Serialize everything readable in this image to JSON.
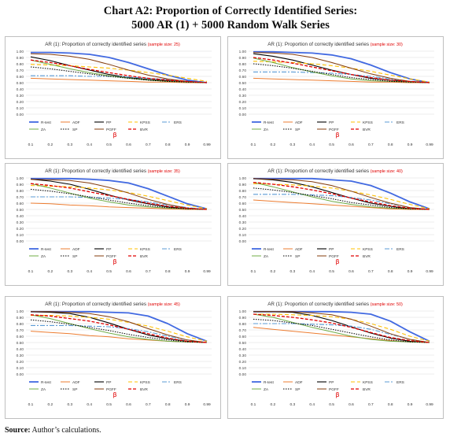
{
  "title_line1": "Chart A2: Proportion of Correctly Identified Series:",
  "title_line2": "5000 AR (1) + 5000 Random Walk Series",
  "source_label": "Source:",
  "source_text": "Author’s calculations.",
  "colors": {
    "R-test": "#4169e1",
    "ADF": "#ed7d31",
    "PP": "#000000",
    "KPSS": "#ffc000",
    "ERS": "#5b9bd5",
    "ZA": "#70ad47",
    "SP": "#000000",
    "PGFF": "#843c0c",
    "BVR": "#e00000",
    "sample_size_text": "#e00000",
    "beta_text": "#e00000"
  },
  "chart_data": [
    {
      "type": "line",
      "title": "AR (1): Proportion of correctly identified series",
      "sample_label": "(sample size: 25)",
      "xlabel": "β",
      "categories": [
        "0.1",
        "0.2",
        "0.3",
        "0.4",
        "0.5",
        "0.6",
        "0.7",
        "0.8",
        "0.9",
        "0.99"
      ],
      "yticks": [
        "0.00",
        "0.10",
        "0.20",
        "0.30",
        "0.40",
        "0.50",
        "0.60",
        "0.70",
        "0.80",
        "0.90",
        "1.00"
      ],
      "ylim": [
        0,
        1
      ],
      "legend": [
        "R-test",
        "ADF",
        "PP",
        "KPSS",
        "ERS",
        "ZA",
        "SP",
        "PGFF",
        "BVR"
      ],
      "series": [
        {
          "name": "R-test",
          "values": [
            0.98,
            0.98,
            0.97,
            0.95,
            0.9,
            0.82,
            0.72,
            0.62,
            0.54,
            0.5
          ]
        },
        {
          "name": "ADF",
          "values": [
            0.57,
            0.56,
            0.55,
            0.54,
            0.53,
            0.52,
            0.51,
            0.51,
            0.5,
            0.5
          ]
        },
        {
          "name": "PP",
          "values": [
            0.91,
            0.85,
            0.77,
            0.7,
            0.63,
            0.58,
            0.55,
            0.53,
            0.51,
            0.5
          ]
        },
        {
          "name": "KPSS",
          "values": [
            0.79,
            0.78,
            0.77,
            0.75,
            0.73,
            0.7,
            0.66,
            0.62,
            0.57,
            0.52
          ]
        },
        {
          "name": "ERS",
          "values": [
            0.61,
            0.61,
            0.61,
            0.6,
            0.6,
            0.59,
            0.57,
            0.55,
            0.52,
            0.5
          ]
        },
        {
          "name": "ZA",
          "values": [
            0.86,
            0.79,
            0.72,
            0.66,
            0.61,
            0.57,
            0.54,
            0.52,
            0.51,
            0.5
          ]
        },
        {
          "name": "SP",
          "values": [
            0.75,
            0.72,
            0.68,
            0.64,
            0.6,
            0.57,
            0.54,
            0.52,
            0.51,
            0.5
          ]
        },
        {
          "name": "PGFF",
          "values": [
            0.96,
            0.95,
            0.92,
            0.87,
            0.79,
            0.7,
            0.62,
            0.56,
            0.52,
            0.5
          ]
        },
        {
          "name": "BVR",
          "values": [
            0.86,
            0.82,
            0.77,
            0.71,
            0.66,
            0.61,
            0.57,
            0.54,
            0.52,
            0.5
          ]
        }
      ]
    },
    {
      "type": "line",
      "title": "AR (1): Proportion of correctly identified series",
      "sample_label": "(sample size: 30)",
      "xlabel": "β",
      "categories": [
        "0.1",
        "0.2",
        "0.3",
        "0.4",
        "0.5",
        "0.6",
        "0.7",
        "0.8",
        "0.9",
        "0.99"
      ],
      "yticks": [
        "0.00",
        "0.10",
        "0.20",
        "0.30",
        "0.40",
        "0.50",
        "0.60",
        "0.70",
        "0.80",
        "0.90",
        "1.00"
      ],
      "ylim": [
        0,
        1
      ],
      "legend": [
        "R-test",
        "ADF",
        "PP",
        "KPSS",
        "ERS",
        "ZA",
        "SP",
        "PGFF",
        "BVR"
      ],
      "series": [
        {
          "name": "R-test",
          "values": [
            0.99,
            0.99,
            0.98,
            0.97,
            0.94,
            0.88,
            0.78,
            0.66,
            0.56,
            0.5
          ]
        },
        {
          "name": "ADF",
          "values": [
            0.57,
            0.56,
            0.55,
            0.54,
            0.53,
            0.52,
            0.51,
            0.51,
            0.5,
            0.5
          ]
        },
        {
          "name": "PP",
          "values": [
            0.96,
            0.92,
            0.86,
            0.78,
            0.7,
            0.63,
            0.57,
            0.54,
            0.51,
            0.5
          ]
        },
        {
          "name": "KPSS",
          "values": [
            0.84,
            0.83,
            0.82,
            0.8,
            0.77,
            0.73,
            0.68,
            0.62,
            0.56,
            0.51
          ]
        },
        {
          "name": "ERS",
          "values": [
            0.67,
            0.67,
            0.67,
            0.66,
            0.65,
            0.63,
            0.6,
            0.56,
            0.52,
            0.5
          ]
        },
        {
          "name": "ZA",
          "values": [
            0.89,
            0.82,
            0.74,
            0.67,
            0.61,
            0.56,
            0.53,
            0.52,
            0.51,
            0.5
          ]
        },
        {
          "name": "SP",
          "values": [
            0.8,
            0.77,
            0.73,
            0.68,
            0.63,
            0.58,
            0.55,
            0.52,
            0.51,
            0.5
          ]
        },
        {
          "name": "PGFF",
          "values": [
            0.98,
            0.97,
            0.95,
            0.9,
            0.82,
            0.73,
            0.64,
            0.57,
            0.52,
            0.5
          ]
        },
        {
          "name": "BVR",
          "values": [
            0.9,
            0.86,
            0.81,
            0.75,
            0.69,
            0.63,
            0.58,
            0.54,
            0.52,
            0.5
          ]
        }
      ]
    },
    {
      "type": "line",
      "title": "AR (1): Proportion of correctly identified series",
      "sample_label": "(sample size: 35)",
      "xlabel": "β",
      "categories": [
        "0.1",
        "0.2",
        "0.3",
        "0.4",
        "0.5",
        "0.6",
        "0.7",
        "0.8",
        "0.9",
        "0.99"
      ],
      "yticks": [
        "0.00",
        "0.10",
        "0.20",
        "0.30",
        "0.40",
        "0.50",
        "0.60",
        "0.70",
        "0.80",
        "0.90",
        "1.00"
      ],
      "ylim": [
        0,
        1
      ],
      "legend": [
        "R-test",
        "ADF",
        "PP",
        "KPSS",
        "ERS",
        "ZA",
        "SP",
        "PGFF",
        "BVR"
      ],
      "series": [
        {
          "name": "R-test",
          "values": [
            0.99,
            0.99,
            0.99,
            0.98,
            0.96,
            0.92,
            0.83,
            0.71,
            0.59,
            0.51
          ]
        },
        {
          "name": "ADF",
          "values": [
            0.6,
            0.59,
            0.57,
            0.56,
            0.54,
            0.53,
            0.52,
            0.51,
            0.5,
            0.5
          ]
        },
        {
          "name": "PP",
          "values": [
            0.98,
            0.95,
            0.9,
            0.82,
            0.73,
            0.65,
            0.59,
            0.54,
            0.51,
            0.5
          ]
        },
        {
          "name": "KPSS",
          "values": [
            0.88,
            0.87,
            0.86,
            0.84,
            0.81,
            0.77,
            0.71,
            0.64,
            0.57,
            0.51
          ]
        },
        {
          "name": "ERS",
          "values": [
            0.7,
            0.7,
            0.7,
            0.69,
            0.68,
            0.66,
            0.62,
            0.57,
            0.53,
            0.5
          ]
        },
        {
          "name": "ZA",
          "values": [
            0.91,
            0.84,
            0.76,
            0.68,
            0.62,
            0.57,
            0.54,
            0.52,
            0.51,
            0.5
          ]
        },
        {
          "name": "SP",
          "values": [
            0.82,
            0.79,
            0.75,
            0.7,
            0.65,
            0.6,
            0.56,
            0.53,
            0.51,
            0.5
          ]
        },
        {
          "name": "PGFF",
          "values": [
            0.98,
            0.97,
            0.96,
            0.92,
            0.85,
            0.76,
            0.66,
            0.58,
            0.52,
            0.5
          ]
        },
        {
          "name": "BVR",
          "values": [
            0.91,
            0.88,
            0.84,
            0.78,
            0.72,
            0.66,
            0.6,
            0.55,
            0.52,
            0.5
          ]
        }
      ]
    },
    {
      "type": "line",
      "title": "AR (1): Proportion of correctly identified series",
      "sample_label": "(sample size: 40)",
      "xlabel": "β",
      "categories": [
        "0.1",
        "0.2",
        "0.3",
        "0.4",
        "0.5",
        "0.6",
        "0.7",
        "0.8",
        "0.9",
        "0.99"
      ],
      "yticks": [
        "0.00",
        "0.10",
        "0.20",
        "0.30",
        "0.40",
        "0.50",
        "0.60",
        "0.70",
        "0.80",
        "0.90",
        "1.00"
      ],
      "ylim": [
        0,
        1
      ],
      "legend": [
        "R-test",
        "ADF",
        "PP",
        "KPSS",
        "ERS",
        "ZA",
        "SP",
        "PGFF",
        "BVR"
      ],
      "series": [
        {
          "name": "R-test",
          "values": [
            0.99,
            0.99,
            0.99,
            0.99,
            0.97,
            0.95,
            0.88,
            0.76,
            0.62,
            0.51
          ]
        },
        {
          "name": "ADF",
          "values": [
            0.65,
            0.63,
            0.61,
            0.59,
            0.57,
            0.55,
            0.53,
            0.51,
            0.5,
            0.5
          ]
        },
        {
          "name": "PP",
          "values": [
            0.99,
            0.97,
            0.93,
            0.86,
            0.77,
            0.68,
            0.6,
            0.55,
            0.51,
            0.5
          ]
        },
        {
          "name": "KPSS",
          "values": [
            0.91,
            0.9,
            0.89,
            0.87,
            0.84,
            0.79,
            0.73,
            0.66,
            0.58,
            0.51
          ]
        },
        {
          "name": "ERS",
          "values": [
            0.74,
            0.74,
            0.74,
            0.73,
            0.72,
            0.69,
            0.65,
            0.59,
            0.53,
            0.5
          ]
        },
        {
          "name": "ZA",
          "values": [
            0.93,
            0.86,
            0.78,
            0.7,
            0.63,
            0.58,
            0.54,
            0.52,
            0.51,
            0.5
          ]
        },
        {
          "name": "SP",
          "values": [
            0.84,
            0.81,
            0.77,
            0.72,
            0.67,
            0.61,
            0.57,
            0.53,
            0.51,
            0.5
          ]
        },
        {
          "name": "PGFF",
          "values": [
            0.99,
            0.98,
            0.97,
            0.94,
            0.88,
            0.79,
            0.69,
            0.6,
            0.53,
            0.5
          ]
        },
        {
          "name": "BVR",
          "values": [
            0.93,
            0.9,
            0.86,
            0.81,
            0.75,
            0.68,
            0.62,
            0.56,
            0.52,
            0.5
          ]
        }
      ]
    },
    {
      "type": "line",
      "title": "AR (1): Proportion of correctly identified series",
      "sample_label": "(sample size: 45)",
      "xlabel": "β",
      "categories": [
        "0.1",
        "0.2",
        "0.3",
        "0.4",
        "0.5",
        "0.6",
        "0.7",
        "0.8",
        "0.9",
        "0.99"
      ],
      "yticks": [
        "0.00",
        "0.10",
        "0.20",
        "0.30",
        "0.40",
        "0.50",
        "0.60",
        "0.70",
        "0.80",
        "0.90",
        "1.00"
      ],
      "ylim": [
        0,
        1
      ],
      "legend": [
        "R-test",
        "ADF",
        "PP",
        "KPSS",
        "ERS",
        "ZA",
        "SP",
        "PGFF",
        "BVR"
      ],
      "series": [
        {
          "name": "R-test",
          "values": [
            0.99,
            0.99,
            0.99,
            0.99,
            0.98,
            0.97,
            0.92,
            0.8,
            0.64,
            0.52
          ]
        },
        {
          "name": "ADF",
          "values": [
            0.68,
            0.66,
            0.64,
            0.61,
            0.59,
            0.56,
            0.54,
            0.52,
            0.51,
            0.5
          ]
        },
        {
          "name": "PP",
          "values": [
            0.99,
            0.98,
            0.96,
            0.9,
            0.81,
            0.71,
            0.62,
            0.56,
            0.52,
            0.5
          ]
        },
        {
          "name": "KPSS",
          "values": [
            0.93,
            0.93,
            0.92,
            0.9,
            0.87,
            0.82,
            0.76,
            0.68,
            0.59,
            0.52
          ]
        },
        {
          "name": "ERS",
          "values": [
            0.77,
            0.77,
            0.77,
            0.76,
            0.75,
            0.72,
            0.67,
            0.6,
            0.54,
            0.5
          ]
        },
        {
          "name": "ZA",
          "values": [
            0.94,
            0.88,
            0.8,
            0.72,
            0.65,
            0.59,
            0.55,
            0.52,
            0.51,
            0.5
          ]
        },
        {
          "name": "SP",
          "values": [
            0.86,
            0.83,
            0.79,
            0.74,
            0.69,
            0.63,
            0.58,
            0.54,
            0.51,
            0.5
          ]
        },
        {
          "name": "PGFF",
          "values": [
            0.99,
            0.99,
            0.98,
            0.96,
            0.91,
            0.83,
            0.72,
            0.62,
            0.54,
            0.5
          ]
        },
        {
          "name": "BVR",
          "values": [
            0.94,
            0.92,
            0.88,
            0.84,
            0.78,
            0.71,
            0.64,
            0.57,
            0.52,
            0.5
          ]
        }
      ]
    },
    {
      "type": "line",
      "title": "AR (1): Proportion of correctly identified series",
      "sample_label": "(sample size: 50)",
      "xlabel": "β",
      "categories": [
        "0.1",
        "0.2",
        "0.3",
        "0.4",
        "0.5",
        "0.6",
        "0.7",
        "0.8",
        "0.9",
        "0.99"
      ],
      "yticks": [
        "0.00",
        "0.10",
        "0.20",
        "0.30",
        "0.40",
        "0.50",
        "0.60",
        "0.70",
        "0.80",
        "0.90",
        "1.00"
      ],
      "ylim": [
        0,
        1
      ],
      "legend": [
        "R-test",
        "ADF",
        "PP",
        "KPSS",
        "ERS",
        "ZA",
        "SP",
        "PGFF",
        "BVR"
      ],
      "series": [
        {
          "name": "R-test",
          "values": [
            0.99,
            0.99,
            0.99,
            0.99,
            0.99,
            0.98,
            0.95,
            0.84,
            0.67,
            0.52
          ]
        },
        {
          "name": "ADF",
          "values": [
            0.74,
            0.71,
            0.68,
            0.65,
            0.62,
            0.59,
            0.56,
            0.53,
            0.51,
            0.5
          ]
        },
        {
          "name": "PP",
          "values": [
            0.99,
            0.99,
            0.98,
            0.93,
            0.85,
            0.75,
            0.65,
            0.57,
            0.52,
            0.5
          ]
        },
        {
          "name": "KPSS",
          "values": [
            0.95,
            0.95,
            0.94,
            0.93,
            0.91,
            0.87,
            0.8,
            0.71,
            0.6,
            0.52
          ]
        },
        {
          "name": "ERS",
          "values": [
            0.8,
            0.8,
            0.8,
            0.79,
            0.78,
            0.76,
            0.71,
            0.63,
            0.55,
            0.5
          ]
        },
        {
          "name": "ZA",
          "values": [
            0.95,
            0.9,
            0.82,
            0.74,
            0.67,
            0.6,
            0.55,
            0.52,
            0.51,
            0.5
          ]
        },
        {
          "name": "SP",
          "values": [
            0.87,
            0.85,
            0.81,
            0.77,
            0.71,
            0.65,
            0.59,
            0.54,
            0.51,
            0.5
          ]
        },
        {
          "name": "PGFF",
          "values": [
            0.99,
            0.99,
            0.99,
            0.97,
            0.94,
            0.87,
            0.76,
            0.64,
            0.55,
            0.5
          ]
        },
        {
          "name": "BVR",
          "values": [
            0.95,
            0.93,
            0.9,
            0.86,
            0.81,
            0.74,
            0.66,
            0.58,
            0.53,
            0.5
          ]
        }
      ]
    }
  ]
}
